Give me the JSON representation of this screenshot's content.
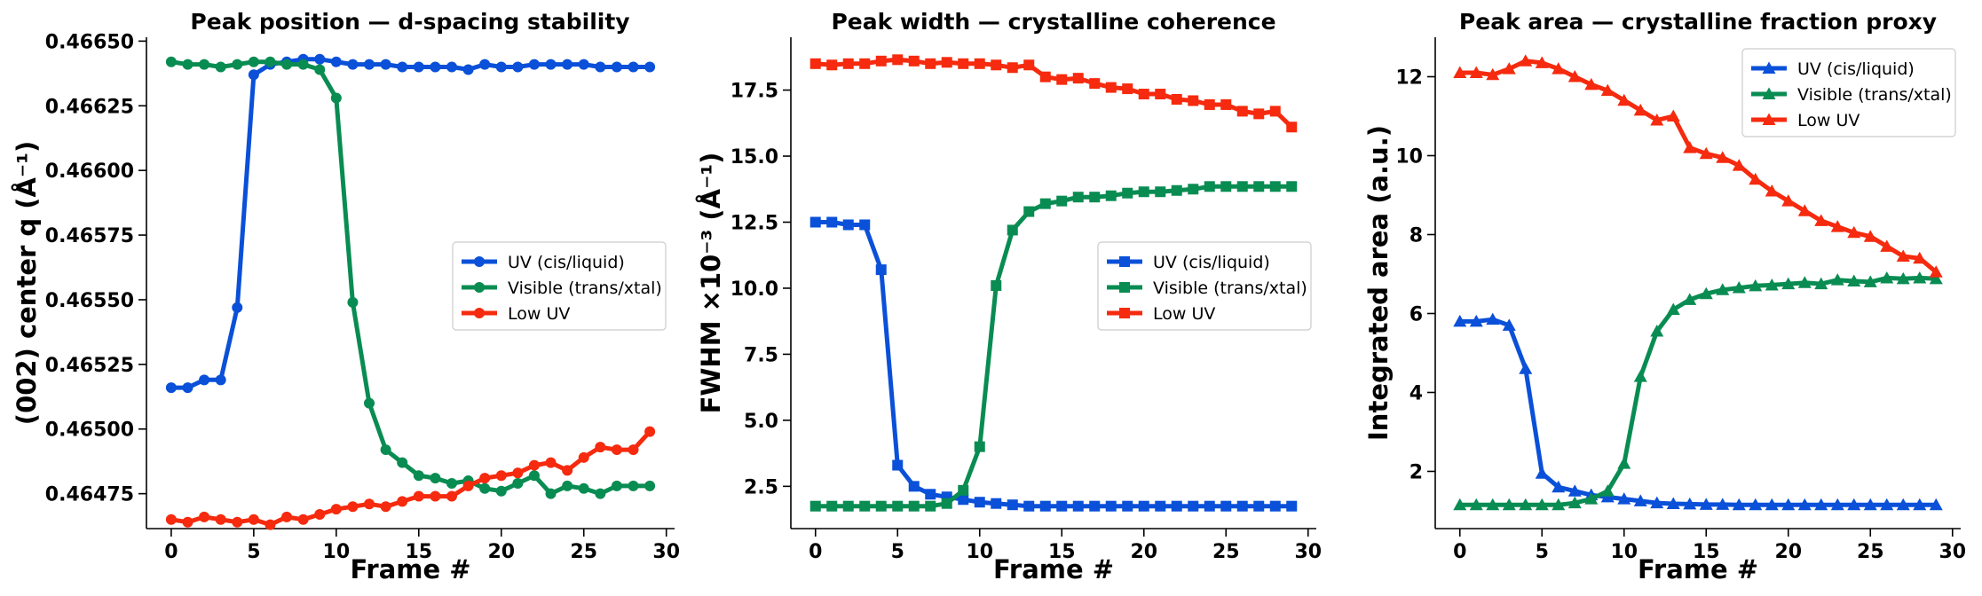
{
  "chart_data": [
    {
      "type": "line",
      "title": "Peak position — d-spacing stability",
      "xlabel": "Frame #",
      "ylabel": "(002) center  q  (Å⁻¹)",
      "xlim": [
        -1.5,
        30.5
      ],
      "ylim": [
        0.464615,
        0.466515
      ],
      "xticks": [
        0,
        5,
        10,
        15,
        20,
        25,
        30
      ],
      "xtick_labels": [
        "0",
        "5",
        "10",
        "15",
        "20",
        "25",
        "30"
      ],
      "yticks": [
        0.46475,
        0.465,
        0.46525,
        0.4655,
        0.46575,
        0.466,
        0.46625,
        0.4665
      ],
      "ytick_labels": [
        "0.46475",
        "0.46500",
        "0.46525",
        "0.46550",
        "0.46575",
        "0.46600",
        "0.46625",
        "0.46650"
      ],
      "marker": "circle",
      "legend_position": "center-right",
      "grid": false,
      "x": [
        0,
        1,
        2,
        3,
        4,
        5,
        6,
        7,
        8,
        9,
        10,
        11,
        12,
        13,
        14,
        15,
        16,
        17,
        18,
        19,
        20,
        21,
        22,
        23,
        24,
        25,
        26,
        27,
        28,
        29
      ],
      "series": [
        {
          "name": "UV (cis/liquid)",
          "color": "#0a50d8",
          "values": [
            0.46516,
            0.46516,
            0.46519,
            0.46519,
            0.46547,
            0.46637,
            0.46641,
            0.46642,
            0.46643,
            0.46643,
            0.46642,
            0.46641,
            0.46641,
            0.46641,
            0.4664,
            0.4664,
            0.4664,
            0.4664,
            0.46639,
            0.46641,
            0.4664,
            0.4664,
            0.46641,
            0.46641,
            0.46641,
            0.46641,
            0.4664,
            0.4664,
            0.4664,
            0.4664
          ]
        },
        {
          "name": "Visible (trans/xtal)",
          "color": "#098c52",
          "values": [
            0.46642,
            0.46641,
            0.46641,
            0.4664,
            0.46641,
            0.46642,
            0.46642,
            0.46641,
            0.46641,
            0.46639,
            0.46628,
            0.46549,
            0.4651,
            0.46492,
            0.46487,
            0.46482,
            0.46481,
            0.46479,
            0.4648,
            0.46477,
            0.46476,
            0.46479,
            0.46482,
            0.46475,
            0.46478,
            0.46477,
            0.46475,
            0.46478,
            0.46478,
            0.46478
          ]
        },
        {
          "name": "Low UV",
          "color": "#f52a0e",
          "values": [
            0.46465,
            0.46464,
            0.46466,
            0.46465,
            0.46464,
            0.46465,
            0.46463,
            0.46466,
            0.46465,
            0.46467,
            0.46469,
            0.4647,
            0.46471,
            0.4647,
            0.46472,
            0.46474,
            0.46474,
            0.46474,
            0.46478,
            0.46481,
            0.46482,
            0.46483,
            0.46486,
            0.46487,
            0.46484,
            0.46489,
            0.46493,
            0.46492,
            0.46492,
            0.46499
          ]
        }
      ]
    },
    {
      "type": "line",
      "title": "Peak width — crystalline coherence",
      "xlabel": "Frame #",
      "ylabel": "FWHM  ×10⁻³  (Å⁻¹)",
      "xlim": [
        -1.5,
        30.5
      ],
      "ylim": [
        0.9,
        19.5
      ],
      "xticks": [
        0,
        5,
        10,
        15,
        20,
        25,
        30
      ],
      "xtick_labels": [
        "0",
        "5",
        "10",
        "15",
        "20",
        "25",
        "30"
      ],
      "yticks": [
        2.5,
        5.0,
        7.5,
        10.0,
        12.5,
        15.0,
        17.5
      ],
      "ytick_labels": [
        "2.5",
        "5.0",
        "7.5",
        "10.0",
        "12.5",
        "15.0",
        "17.5"
      ],
      "marker": "square",
      "legend_position": "center-right",
      "grid": false,
      "x": [
        0,
        1,
        2,
        3,
        4,
        5,
        6,
        7,
        8,
        9,
        10,
        11,
        12,
        13,
        14,
        15,
        16,
        17,
        18,
        19,
        20,
        21,
        22,
        23,
        24,
        25,
        26,
        27,
        28,
        29
      ],
      "series": [
        {
          "name": "UV (cis/liquid)",
          "color": "#0a50d8",
          "values": [
            12.5,
            12.5,
            12.4,
            12.4,
            10.7,
            3.3,
            2.5,
            2.2,
            2.1,
            2.0,
            1.9,
            1.85,
            1.8,
            1.75,
            1.75,
            1.75,
            1.75,
            1.75,
            1.75,
            1.75,
            1.75,
            1.75,
            1.75,
            1.75,
            1.75,
            1.75,
            1.75,
            1.75,
            1.75,
            1.75
          ]
        },
        {
          "name": "Visible (trans/xtal)",
          "color": "#098c52",
          "values": [
            1.75,
            1.75,
            1.75,
            1.75,
            1.75,
            1.75,
            1.75,
            1.75,
            1.85,
            2.35,
            4.0,
            10.1,
            12.2,
            12.9,
            13.2,
            13.3,
            13.45,
            13.45,
            13.5,
            13.6,
            13.65,
            13.65,
            13.7,
            13.75,
            13.85,
            13.85,
            13.85,
            13.85,
            13.85,
            13.85
          ]
        },
        {
          "name": "Low UV",
          "color": "#f52a0e",
          "values": [
            18.5,
            18.45,
            18.5,
            18.5,
            18.6,
            18.65,
            18.6,
            18.5,
            18.55,
            18.5,
            18.5,
            18.45,
            18.35,
            18.45,
            18.0,
            17.9,
            17.95,
            17.75,
            17.6,
            17.55,
            17.35,
            17.35,
            17.15,
            17.1,
            16.95,
            16.95,
            16.7,
            16.6,
            16.7,
            16.1
          ]
        }
      ]
    },
    {
      "type": "line",
      "title": "Peak area — crystalline fraction proxy",
      "xlabel": "Frame #",
      "ylabel": "Integrated area (a.u.)",
      "xlim": [
        -1.5,
        30.5
      ],
      "ylim": [
        0.55,
        13.0
      ],
      "xticks": [
        0,
        5,
        10,
        15,
        20,
        25,
        30
      ],
      "xtick_labels": [
        "0",
        "5",
        "10",
        "15",
        "20",
        "25",
        "30"
      ],
      "yticks": [
        2,
        4,
        6,
        8,
        10,
        12
      ],
      "ytick_labels": [
        "2",
        "4",
        "6",
        "8",
        "10",
        "12"
      ],
      "marker": "triangle",
      "legend_position": "top-right",
      "grid": false,
      "x": [
        0,
        1,
        2,
        3,
        4,
        5,
        6,
        7,
        8,
        9,
        10,
        11,
        12,
        13,
        14,
        15,
        16,
        17,
        18,
        19,
        20,
        21,
        22,
        23,
        24,
        25,
        26,
        27,
        28,
        29
      ],
      "series": [
        {
          "name": "UV (cis/liquid)",
          "color": "#0a50d8",
          "values": [
            5.8,
            5.8,
            5.85,
            5.7,
            4.6,
            1.95,
            1.6,
            1.5,
            1.4,
            1.35,
            1.3,
            1.25,
            1.2,
            1.18,
            1.17,
            1.16,
            1.16,
            1.15,
            1.15,
            1.15,
            1.15,
            1.15,
            1.15,
            1.15,
            1.15,
            1.15,
            1.15,
            1.15,
            1.15,
            1.15
          ]
        },
        {
          "name": "Visible (trans/xtal)",
          "color": "#098c52",
          "values": [
            1.15,
            1.15,
            1.15,
            1.15,
            1.15,
            1.15,
            1.15,
            1.2,
            1.3,
            1.5,
            2.2,
            4.4,
            5.55,
            6.1,
            6.35,
            6.5,
            6.6,
            6.65,
            6.7,
            6.72,
            6.75,
            6.78,
            6.75,
            6.85,
            6.82,
            6.8,
            6.9,
            6.88,
            6.9,
            6.88
          ]
        },
        {
          "name": "Low UV",
          "color": "#f52a0e",
          "values": [
            12.1,
            12.1,
            12.05,
            12.2,
            12.4,
            12.35,
            12.2,
            12.0,
            11.8,
            11.65,
            11.4,
            11.15,
            10.9,
            11.0,
            10.2,
            10.05,
            9.95,
            9.75,
            9.4,
            9.1,
            8.85,
            8.6,
            8.35,
            8.2,
            8.05,
            7.95,
            7.7,
            7.45,
            7.4,
            7.05
          ]
        }
      ]
    }
  ]
}
